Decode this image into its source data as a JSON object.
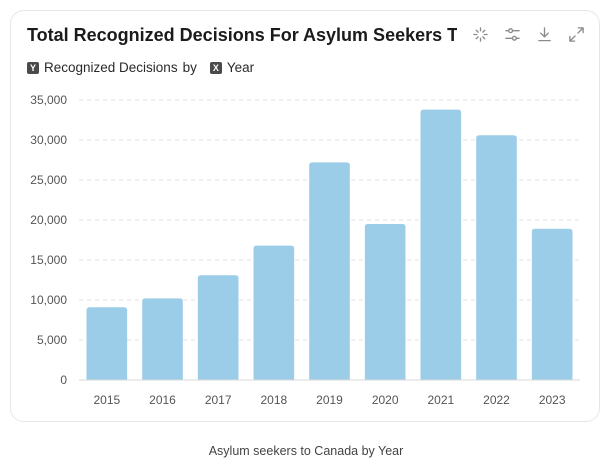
{
  "header": {
    "title": "Total Recognized Decisions For Asylum Seekers To C...",
    "y_chip": "Y",
    "y_label": "Recognized Decisions",
    "by_label": "by",
    "x_chip": "X",
    "x_label": "Year"
  },
  "toolbar": {
    "icons": [
      "sparkle-icon",
      "sliders-icon",
      "download-icon",
      "expand-icon"
    ]
  },
  "caption": "Asylum seekers to Canada by Year",
  "colors": {
    "bar": "#9ccde8",
    "grid": "#e3e3e3",
    "axis_text": "#555555"
  },
  "chart_data": {
    "type": "bar",
    "categories": [
      "2015",
      "2016",
      "2017",
      "2018",
      "2019",
      "2020",
      "2021",
      "2022",
      "2023"
    ],
    "series": [
      {
        "values": [
          9100,
          10200,
          13100,
          16800,
          27200,
          19500,
          33800,
          30600,
          18900
        ]
      }
    ],
    "ylim": [
      0,
      35000
    ],
    "yticks": [
      0,
      5000,
      10000,
      15000,
      20000,
      25000,
      30000,
      35000
    ],
    "ytick_labels": [
      "0",
      "5,000",
      "10,000",
      "15,000",
      "20,000",
      "25,000",
      "30,000",
      "35,000"
    ],
    "grid": true,
    "legend": "none"
  }
}
